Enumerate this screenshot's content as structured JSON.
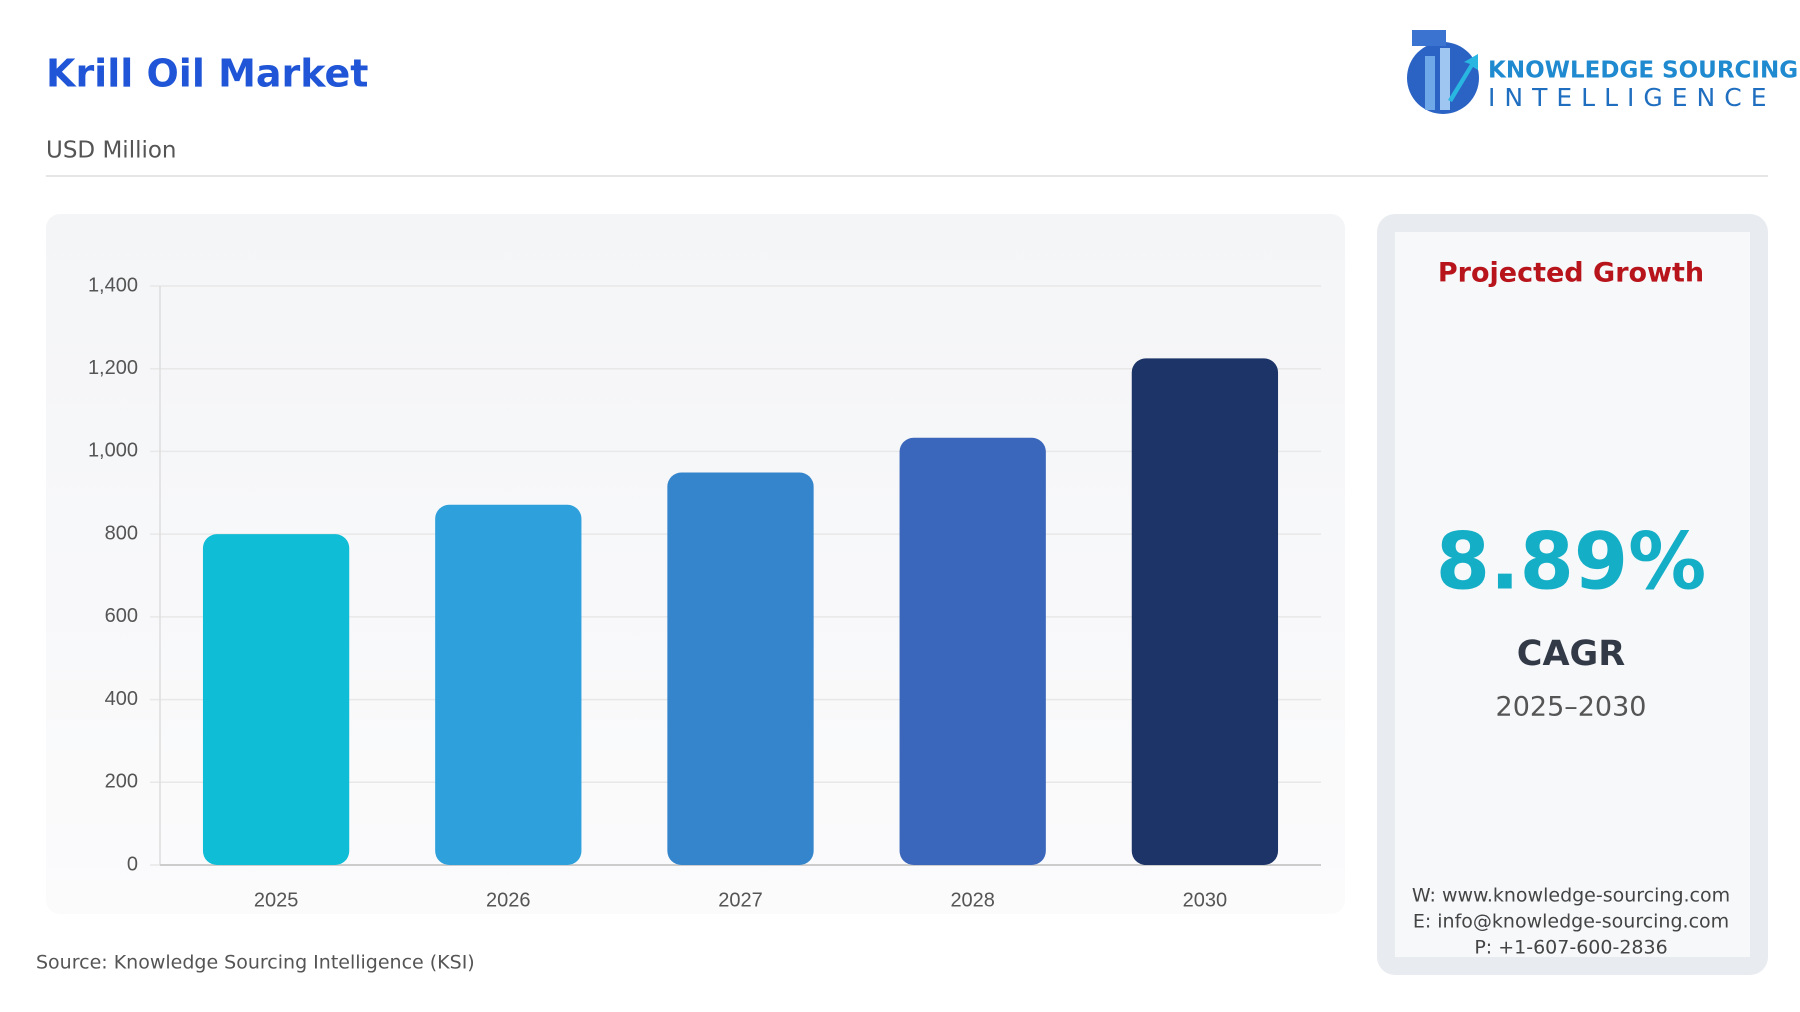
{
  "header": {
    "title": "Krill Oil Market",
    "subtitle": "USD Million",
    "logo_line1": "KNOWLEDGE SOURCING",
    "logo_line2": "INTELLIGENCE"
  },
  "chart_data": {
    "type": "bar",
    "categories": [
      "2025",
      "2026",
      "2027",
      "2028",
      "2030"
    ],
    "values": [
      800,
      871,
      949,
      1033,
      1225
    ],
    "colors": [
      "#10bdd6",
      "#2ea0dc",
      "#3585cc",
      "#3a66bb",
      "#1c3467"
    ],
    "ylim": [
      0,
      1400
    ],
    "yticks": [
      0,
      200,
      400,
      600,
      800,
      {
        "value": 1000,
        "label": "1,000"
      },
      {
        "value": 1200,
        "label": "1,200"
      },
      {
        "value": 1400,
        "label": "1,400"
      }
    ],
    "grid": true
  },
  "growth_panel": {
    "heading": "Projected Growth",
    "value": "8.89%",
    "label": "CAGR",
    "period": "2025–2030",
    "contacts": [
      "W: www.knowledge-sourcing.com",
      "E: info@knowledge-sourcing.com",
      "P: +1-607-600-2836"
    ]
  },
  "source": "Source: Knowledge Sourcing Intelligence (KSI)"
}
